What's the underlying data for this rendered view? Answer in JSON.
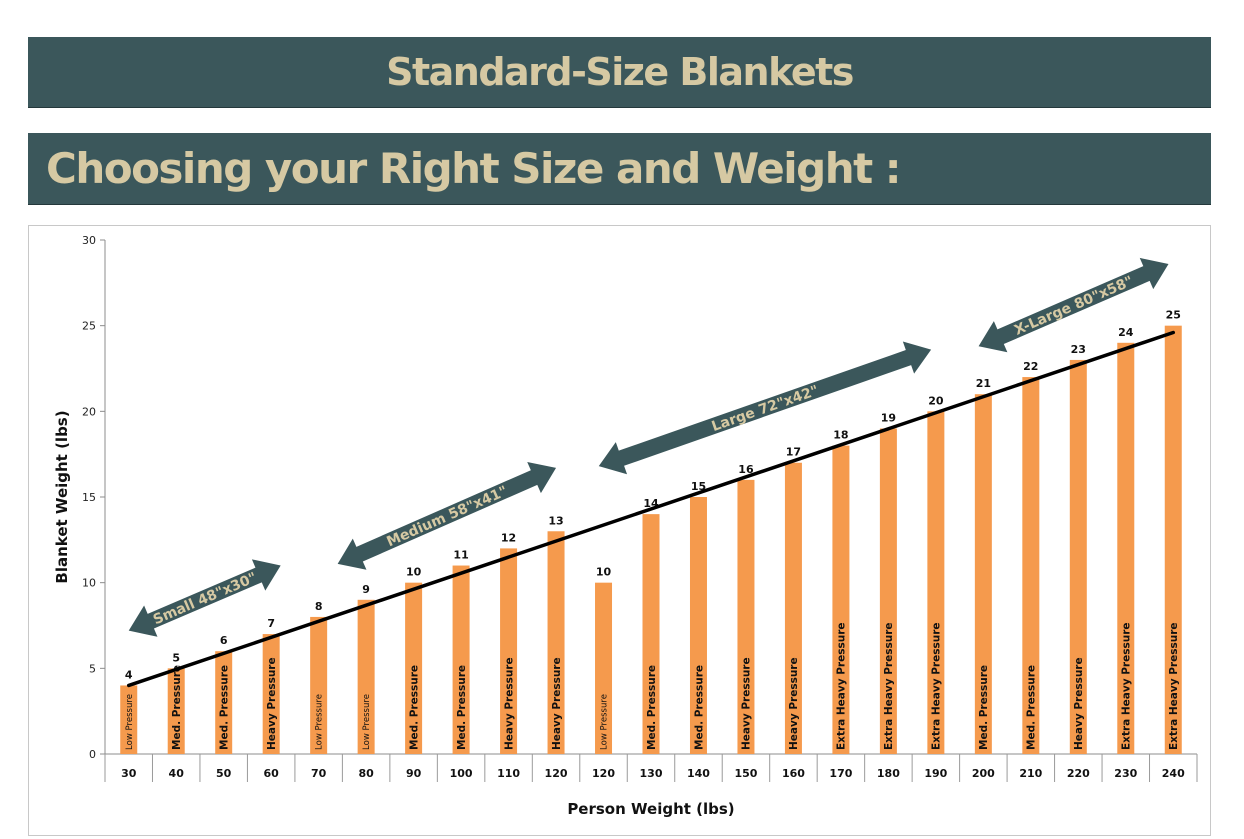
{
  "header": {
    "banner_top": "Standard-Size Blankets",
    "banner_main": "Choosing your Right Size and Weight :"
  },
  "chart_data": {
    "type": "bar",
    "xlabel": "Person Weight (lbs)",
    "ylabel": "Blanket Weight (lbs)",
    "ylim": [
      0,
      30
    ],
    "yticks": [
      0,
      5,
      10,
      15,
      20,
      25,
      30
    ],
    "grid": false,
    "bar_color": "#f59a4d",
    "trend_color": "#000000",
    "categories": [
      "30",
      "40",
      "50",
      "60",
      "70",
      "80",
      "90",
      "100",
      "110",
      "120",
      "120",
      "130",
      "140",
      "150",
      "160",
      "170",
      "180",
      "190",
      "200",
      "210",
      "220",
      "230",
      "240"
    ],
    "values": [
      4,
      5,
      6,
      7,
      8,
      9,
      10,
      11,
      12,
      13,
      10,
      14,
      15,
      16,
      17,
      18,
      19,
      20,
      21,
      22,
      23,
      24,
      25
    ],
    "bar_labels": [
      "Low Pressure",
      "Med. Pressure",
      "Med. Pressure",
      "Heavy Pressure",
      "Low Pressure",
      "Low Pressure",
      "Med. Pressure",
      "Med. Pressure",
      "Heavy Pressure",
      "Heavy Pressure",
      "Low Pressure",
      "Med. Pressure",
      "Med. Pressure",
      "Heavy Pressure",
      "Heavy Pressure",
      "Extra Heavy Pressure",
      "Extra Heavy Pressure",
      "Extra Heavy Pressure",
      "Med. Pressure",
      "Med. Pressure",
      "Heavy Pressure",
      "Extra Heavy Pressure",
      "Extra Heavy Pressure"
    ],
    "trendline": {
      "start": [
        1,
        4.0
      ],
      "end": [
        23,
        24.6
      ]
    },
    "annotations": [
      {
        "text": "Small 48\"x30\"",
        "color": "#3b575b",
        "from": [
          1,
          7.2
        ],
        "to": [
          4.2,
          11.0
        ]
      },
      {
        "text": "Medium 58\"x41\"",
        "color": "#3b575b",
        "from": [
          5.4,
          11.1
        ],
        "to": [
          10.0,
          16.7
        ]
      },
      {
        "text": "Large 72\"x42\"",
        "color": "#3b575b",
        "from": [
          10.9,
          16.8
        ],
        "to": [
          17.9,
          23.6
        ]
      },
      {
        "text": "X-Large 80\"x58\"",
        "color": "#3b575b",
        "from": [
          18.9,
          23.8
        ],
        "to": [
          22.9,
          28.6
        ]
      }
    ]
  }
}
